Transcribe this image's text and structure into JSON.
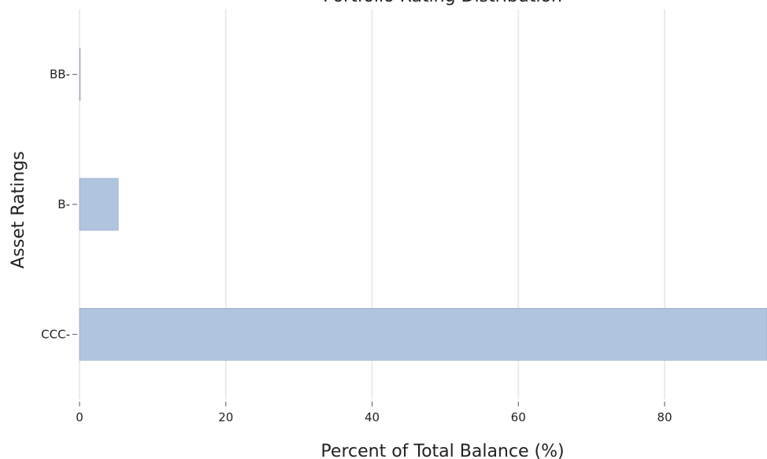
{
  "chart_data": {
    "type": "bar",
    "orientation": "horizontal",
    "title": "Portfolio Rating Distribution",
    "xlabel": "Percent of Total Balance (%)",
    "ylabel": "Asset Ratings",
    "categories": [
      "BB-",
      "B-",
      "CCC-"
    ],
    "values": [
      0.1,
      5.3,
      94.6
    ],
    "xlim": [
      0,
      94
    ],
    "xticks": [
      0,
      20,
      40,
      60,
      80
    ],
    "grid": "vertical",
    "legend": "none",
    "colors": {
      "bar": "#b0c4de",
      "bar_edge": "#8fa3bd",
      "grid": "#ebebeb"
    }
  }
}
